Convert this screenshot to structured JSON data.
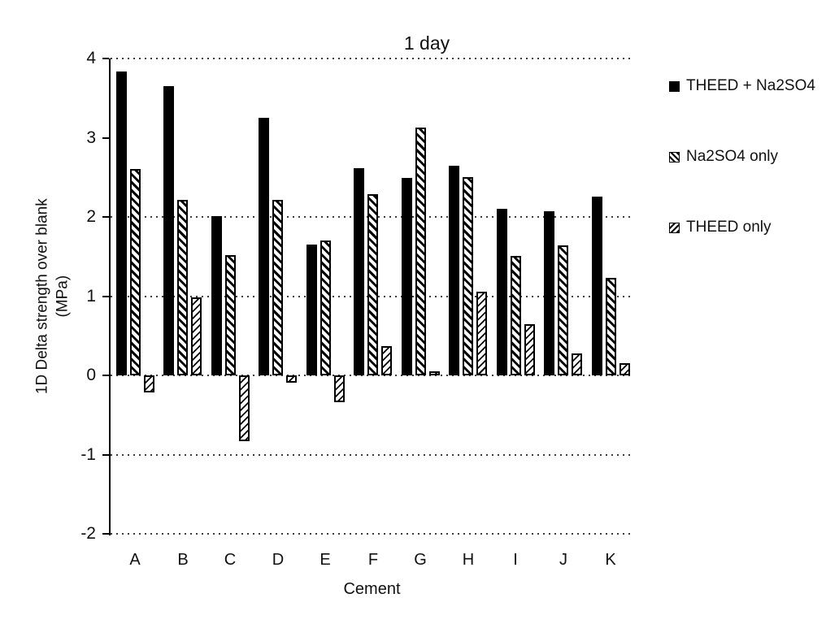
{
  "title": "1 day",
  "axes": {
    "y_label_line1": "1D Delta strength over blank",
    "y_label_line2": "(MPa)",
    "x_label": "Cement",
    "y_ticks": [
      4,
      3,
      2,
      1,
      0,
      -1,
      -2
    ],
    "gridlines": [
      4,
      2,
      1,
      0,
      -1,
      -2
    ],
    "y_min": -2,
    "y_max": 4
  },
  "legend": [
    {
      "label": "THEED + Na2SO4",
      "pattern": "solid-black"
    },
    {
      "label": "Na2SO4 only",
      "pattern": "diagonal-back-hatch"
    },
    {
      "label": "THEED only",
      "pattern": "diagonal-fwd-hatch"
    }
  ],
  "colors": {
    "bar": "#000000",
    "text": "#111111",
    "background": "#ffffff"
  },
  "chart_data": {
    "type": "bar",
    "title": "1 day",
    "xlabel": "Cement",
    "ylabel": "1D Delta strength over blank (MPa)",
    "ylim": [
      -2,
      4
    ],
    "grid": "dotted horizontal",
    "legend_position": "right",
    "categories": [
      "A",
      "B",
      "C",
      "D",
      "E",
      "F",
      "G",
      "H",
      "I",
      "J",
      "K"
    ],
    "series": [
      {
        "name": "THEED + Na2SO4",
        "values": [
          3.84,
          3.65,
          2.01,
          3.25,
          1.65,
          2.62,
          2.49,
          2.65,
          2.1,
          2.07,
          2.26
        ]
      },
      {
        "name": "Na2SO4 only",
        "values": [
          2.61,
          2.22,
          1.52,
          2.22,
          1.7,
          2.29,
          3.13,
          2.5,
          1.51,
          1.64,
          1.23
        ]
      },
      {
        "name": "THEED only",
        "values": [
          -0.22,
          0.98,
          -0.83,
          -0.09,
          -0.34,
          0.37,
          0.05,
          1.06,
          0.65,
          0.28,
          0.15
        ]
      }
    ]
  }
}
